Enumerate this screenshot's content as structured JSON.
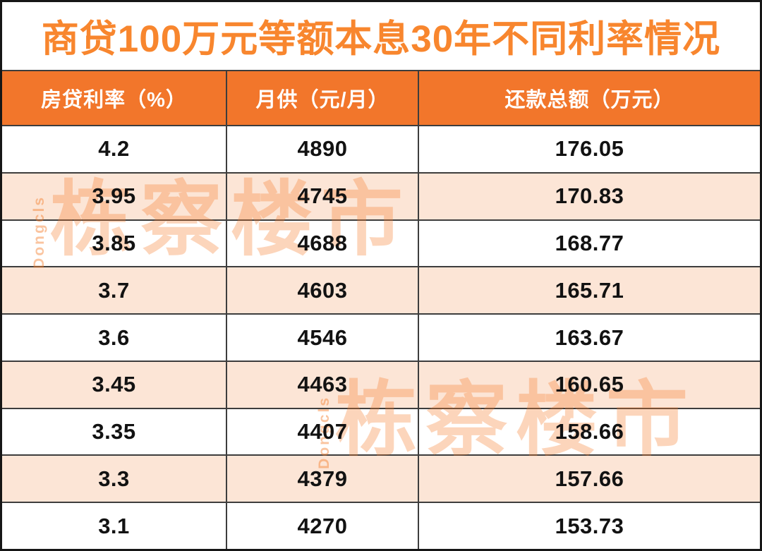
{
  "chart_data": {
    "type": "table",
    "title": "商贷100万元等额本息30年不同利率情况",
    "columns": [
      "房贷利率（%）",
      "月供（元/月）",
      "还款总额（万元）"
    ],
    "rows": [
      [
        4.2,
        4890,
        176.05
      ],
      [
        3.95,
        4745,
        170.83
      ],
      [
        3.85,
        4688,
        168.77
      ],
      [
        3.7,
        4603,
        165.71
      ],
      [
        3.6,
        4546,
        163.67
      ],
      [
        3.45,
        4463,
        160.65
      ],
      [
        3.35,
        4407,
        158.66
      ],
      [
        3.3,
        4379,
        157.66
      ],
      [
        3.1,
        4270,
        153.73
      ]
    ],
    "layout": {
      "striped_rows": "alternating starting with white",
      "grid": "dark gridlines, black outer frame"
    }
  },
  "watermark": {
    "cjk": "栋察楼市",
    "latin": "Dongcls"
  },
  "colors": {
    "title_text": "#F8862E",
    "header_bg": "#F2762B",
    "header_text": "#FFFFFF",
    "row_stripe": "#FCE5D6",
    "grid_line": "#3D3D3D",
    "body_text": "#121212",
    "watermark": "#F57C2A"
  }
}
